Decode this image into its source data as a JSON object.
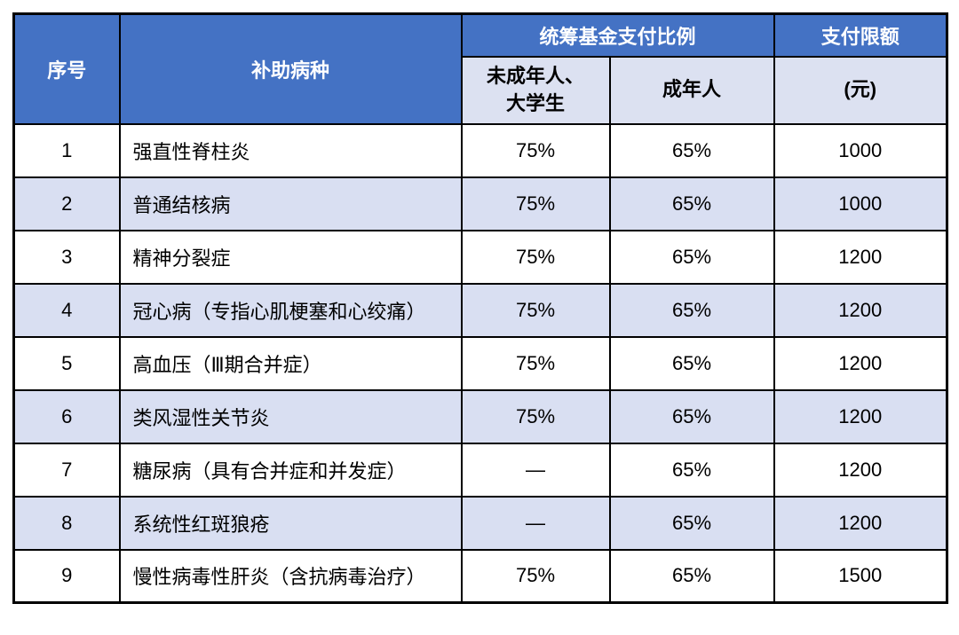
{
  "colors": {
    "header_bg": "#4472C4",
    "header_text": "#FFFFFF",
    "subheader_bg": "#DCE1F1",
    "row_bg": "#FFFFFF",
    "row_alt_bg": "#D9DFF2",
    "border": "#000000",
    "body_text": "#000000"
  },
  "table": {
    "header": {
      "col_no": "序号",
      "col_disease": "补助病种",
      "col_ratio_group": "统筹基金支付比例",
      "col_limit": "支付限额",
      "sub_minor_line1": "未成年人、",
      "sub_minor_line2": "大学生",
      "sub_adult": "成年人",
      "sub_limit_unit": "(元)"
    },
    "rows": [
      {
        "no": "1",
        "disease": "强直性脊柱炎",
        "minor": "75%",
        "adult": "65%",
        "limit": "1000"
      },
      {
        "no": "2",
        "disease": "普通结核病",
        "minor": "75%",
        "adult": "65%",
        "limit": "1000"
      },
      {
        "no": "3",
        "disease": "精神分裂症",
        "minor": "75%",
        "adult": "65%",
        "limit": "1200"
      },
      {
        "no": "4",
        "disease": "冠心病（专指心肌梗塞和心绞痛）",
        "minor": "75%",
        "adult": "65%",
        "limit": "1200"
      },
      {
        "no": "5",
        "disease": "高血压（Ⅲ期合并症）",
        "minor": "75%",
        "adult": "65%",
        "limit": "1200"
      },
      {
        "no": "6",
        "disease": "类风湿性关节炎",
        "minor": "75%",
        "adult": "65%",
        "limit": "1200"
      },
      {
        "no": "7",
        "disease": "糖尿病（具有合并症和并发症）",
        "minor": "—",
        "adult": "65%",
        "limit": "1200"
      },
      {
        "no": "8",
        "disease": "系统性红斑狼疮",
        "minor": "—",
        "adult": "65%",
        "limit": "1200"
      },
      {
        "no": "9",
        "disease": "慢性病毒性肝炎（含抗病毒治疗）",
        "minor": "75%",
        "adult": "65%",
        "limit": "1500"
      }
    ]
  }
}
